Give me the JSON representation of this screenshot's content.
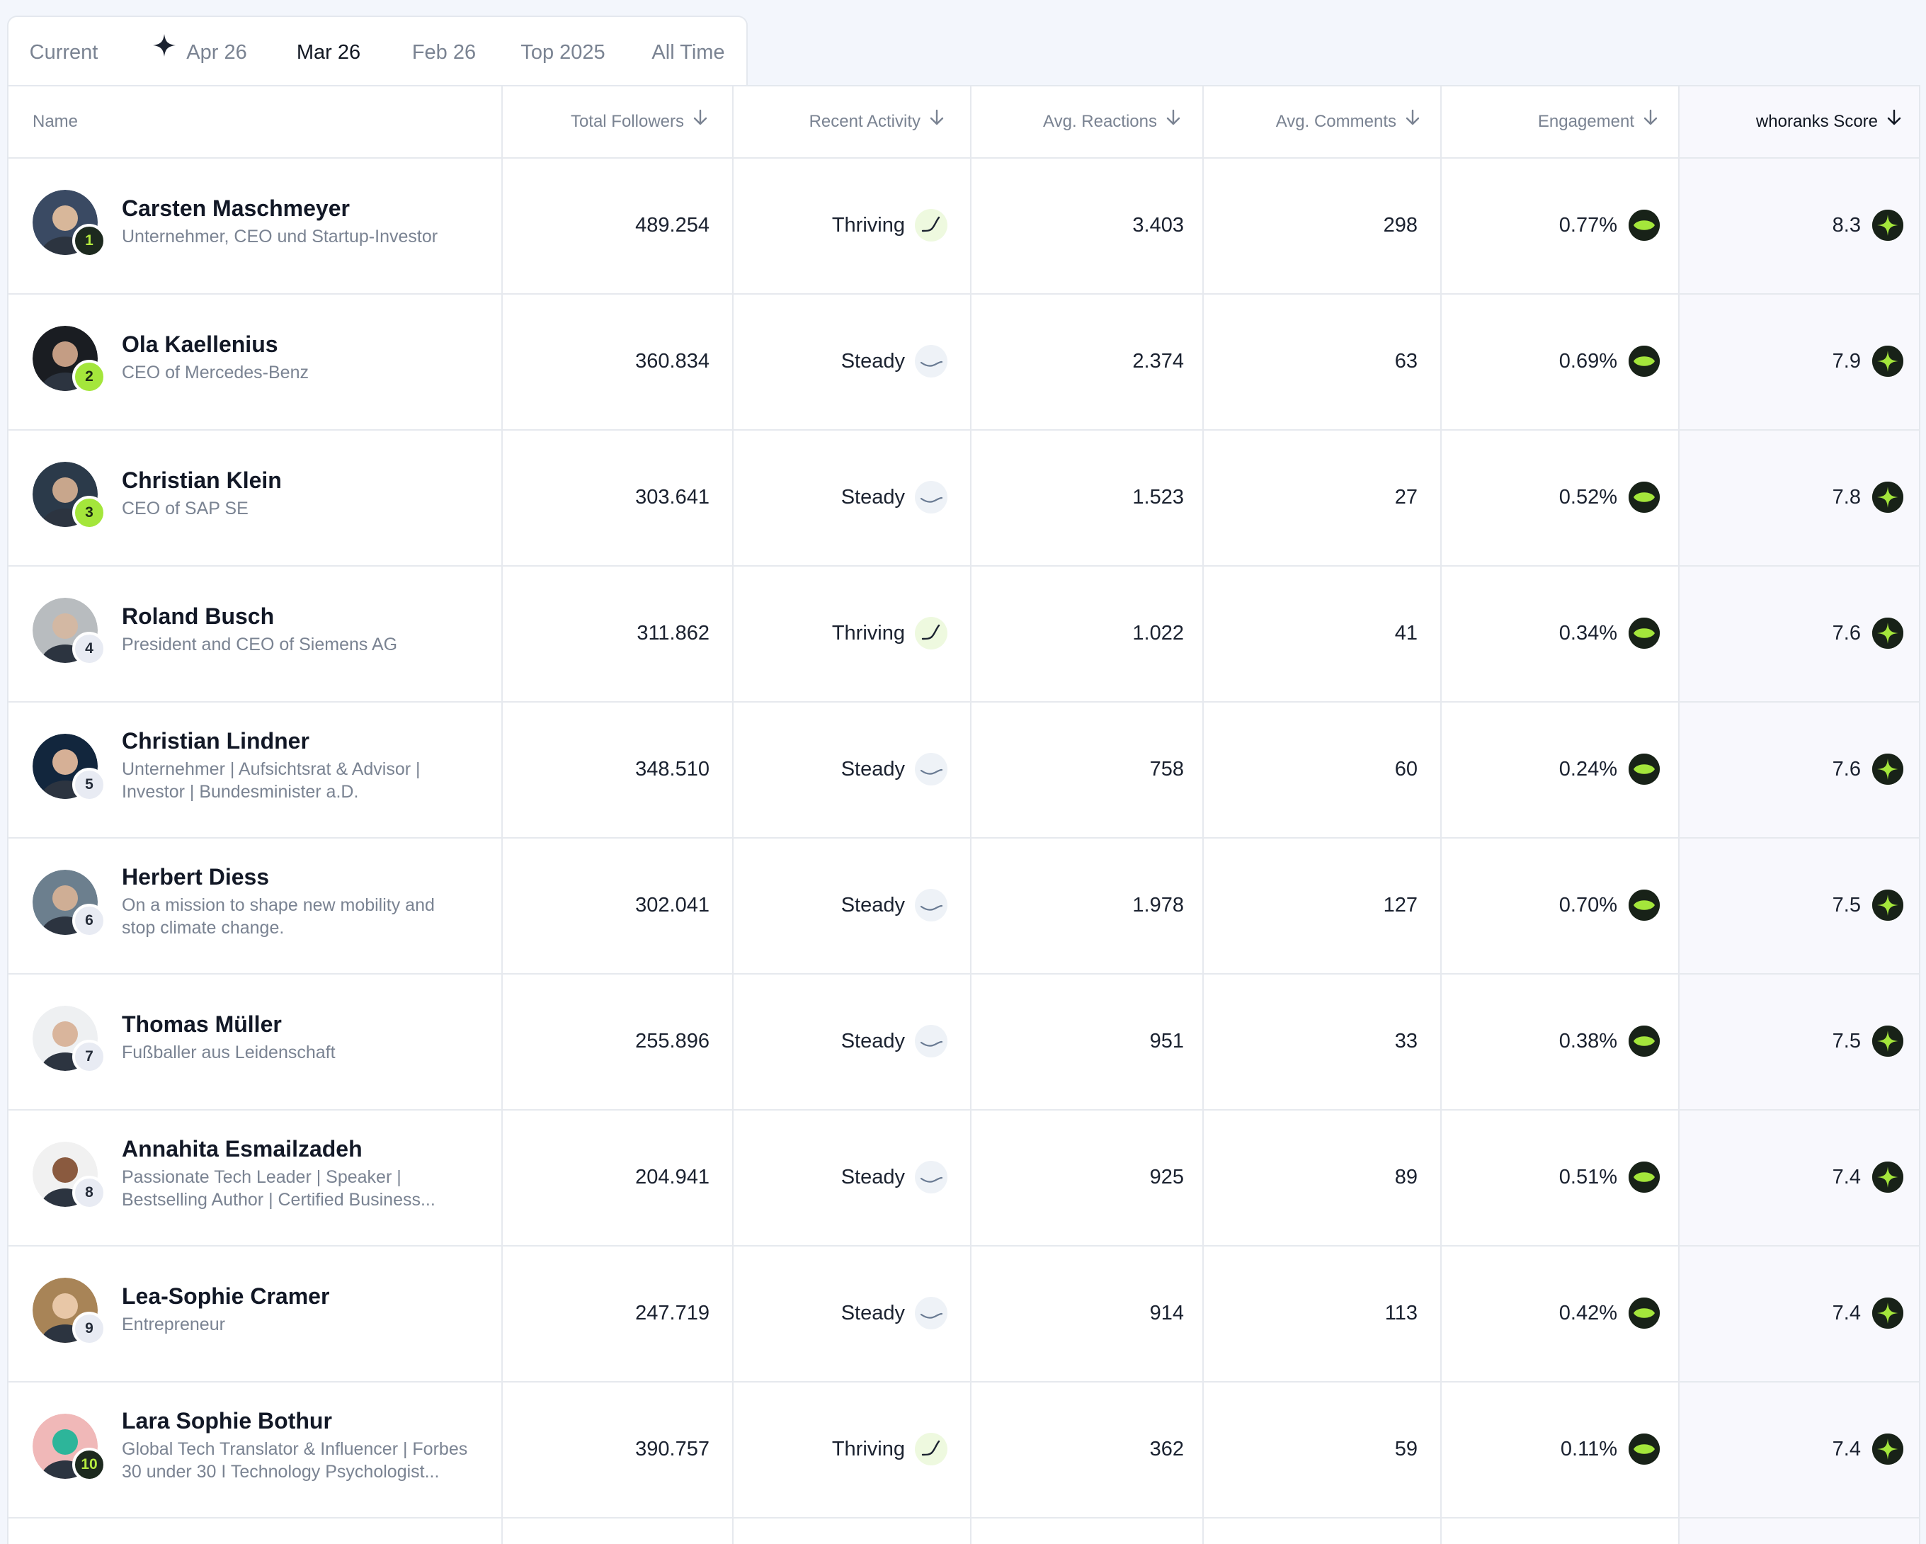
{
  "tabs": [
    {
      "label": "Current",
      "active": false,
      "spark": false
    },
    {
      "label": "Apr 26",
      "active": false,
      "spark": true
    },
    {
      "label": "Mar 26",
      "active": true,
      "spark": false
    },
    {
      "label": "Feb 26",
      "active": false,
      "spark": false
    },
    {
      "label": "Top 2025",
      "active": false,
      "spark": false
    },
    {
      "label": "All Time",
      "active": false,
      "spark": false
    }
  ],
  "columns": {
    "name": "Name",
    "followers": "Total Followers",
    "activity": "Recent Activity",
    "reactions": "Avg. Reactions",
    "comments": "Avg. Comments",
    "engagement": "Engagement",
    "score": "whoranks Score"
  },
  "colors": {
    "accent": "#a4e63b",
    "badge_dark": "#182218",
    "thriving_bg": "#eef9df",
    "steady_bg": "#eef2f7"
  },
  "rows": [
    {
      "rank": "1",
      "name": "Carsten Maschmeyer",
      "subtitle": [
        "Unternehmer, CEO und Startup-Investor"
      ],
      "followers": "489.254",
      "activity": "Thriving",
      "reactions": "3.403",
      "comments": "298",
      "engagement": "0.77%",
      "score": "8.3",
      "rank_style": "gold",
      "avatar_colors": [
        "#3a4a63",
        "#d8b79a"
      ]
    },
    {
      "rank": "2",
      "name": "Ola Kaellenius",
      "subtitle": [
        "CEO of Mercedes-Benz"
      ],
      "followers": "360.834",
      "activity": "Steady",
      "reactions": "2.374",
      "comments": "63",
      "engagement": "0.69%",
      "score": "7.9",
      "rank_style": "lime",
      "avatar_colors": [
        "#1a1d22",
        "#c49d84"
      ]
    },
    {
      "rank": "3",
      "name": "Christian Klein",
      "subtitle": [
        "CEO of SAP SE"
      ],
      "followers": "303.641",
      "activity": "Steady",
      "reactions": "1.523",
      "comments": "27",
      "engagement": "0.52%",
      "score": "7.8",
      "rank_style": "lime",
      "avatar_colors": [
        "#2b3a4a",
        "#c8a68c"
      ]
    },
    {
      "rank": "4",
      "name": "Roland Busch",
      "subtitle": [
        "President and CEO of Siemens AG"
      ],
      "followers": "311.862",
      "activity": "Thriving",
      "reactions": "1.022",
      "comments": "41",
      "engagement": "0.34%",
      "score": "7.6",
      "rank_style": "grey",
      "avatar_colors": [
        "#b8bcbf",
        "#d3b8a3"
      ]
    },
    {
      "rank": "5",
      "name": "Christian Lindner",
      "subtitle": [
        "Unternehmer | Aufsichtsrat & Advisor |",
        "Investor | Bundesminister a.D."
      ],
      "followers": "348.510",
      "activity": "Steady",
      "reactions": "758",
      "comments": "60",
      "engagement": "0.24%",
      "score": "7.6",
      "rank_style": "grey",
      "avatar_colors": [
        "#12263d",
        "#d6b096"
      ]
    },
    {
      "rank": "6",
      "name": "Herbert Diess",
      "subtitle": [
        "On a mission to shape new mobility and",
        "stop climate change."
      ],
      "followers": "302.041",
      "activity": "Steady",
      "reactions": "1.978",
      "comments": "127",
      "engagement": "0.70%",
      "score": "7.5",
      "rank_style": "grey",
      "avatar_colors": [
        "#6c7f8e",
        "#cfae95"
      ]
    },
    {
      "rank": "7",
      "name": "Thomas Müller",
      "subtitle": [
        "Fußballer aus Leidenschaft"
      ],
      "followers": "255.896",
      "activity": "Steady",
      "reactions": "951",
      "comments": "33",
      "engagement": "0.38%",
      "score": "7.5",
      "rank_style": "grey",
      "avatar_colors": [
        "#eef0f2",
        "#d9b59c"
      ]
    },
    {
      "rank": "8",
      "name": "Annahita Esmailzadeh",
      "subtitle": [
        "Passionate Tech Leader | Speaker |",
        "Bestselling Author | Certified Business..."
      ],
      "followers": "204.941",
      "activity": "Steady",
      "reactions": "925",
      "comments": "89",
      "engagement": "0.51%",
      "score": "7.4",
      "rank_style": "grey",
      "avatar_colors": [
        "#f1f1f1",
        "#8a5a3f"
      ]
    },
    {
      "rank": "9",
      "name": "Lea-Sophie Cramer",
      "subtitle": [
        "Entrepreneur"
      ],
      "followers": "247.719",
      "activity": "Steady",
      "reactions": "914",
      "comments": "113",
      "engagement": "0.42%",
      "score": "7.4",
      "rank_style": "grey",
      "avatar_colors": [
        "#a88457",
        "#e8c7a7"
      ]
    },
    {
      "rank": "10",
      "name": "Lara Sophie Bothur",
      "subtitle": [
        "Global Tech Translator & Influencer | Forbes",
        "30 under 30 I Technology Psychologist..."
      ],
      "followers": "390.757",
      "activity": "Thriving",
      "reactions": "362",
      "comments": "59",
      "engagement": "0.11%",
      "score": "7.4",
      "rank_style": "gold",
      "avatar_colors": [
        "#f0b8b8",
        "#2db59a"
      ]
    }
  ]
}
